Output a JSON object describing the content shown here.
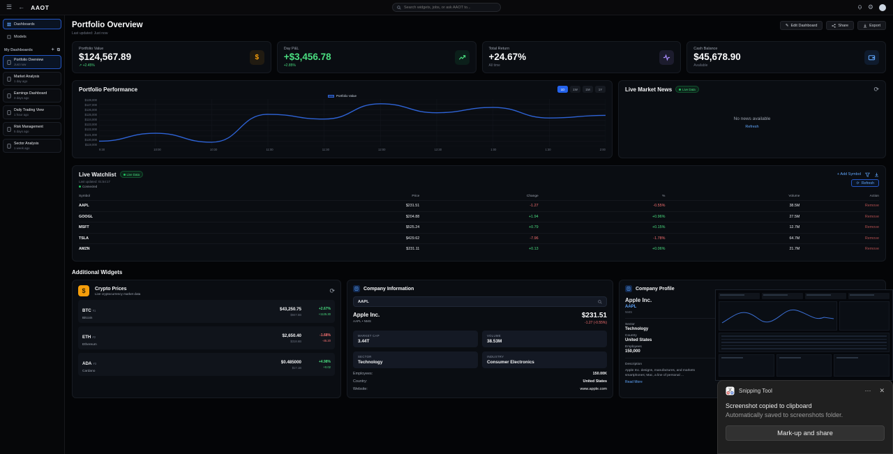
{
  "colors": {
    "accent": "#3b82f6",
    "green": "#4ade80",
    "red": "#f87171",
    "amber": "#f59e0b",
    "purple": "#a78bfa"
  },
  "topbar": {
    "logo": "AAOT",
    "search_placeholder": "Search widgets, jobs, or ask AAOT to..."
  },
  "sidebar": {
    "nav": [
      {
        "label": "Dashboards"
      },
      {
        "label": "Models"
      }
    ],
    "section_title": "My Dashboards",
    "dashboards": [
      {
        "label": "Portfolio Overview",
        "time": "Just now"
      },
      {
        "label": "Market Analysis",
        "time": "1 day ago"
      },
      {
        "label": "Earnings Dashboard",
        "time": "3 days ago"
      },
      {
        "label": "Daily Trading View",
        "time": "1 hour ago"
      },
      {
        "label": "Risk Management",
        "time": "5 days ago"
      },
      {
        "label": "Sector Analysis",
        "time": "1 week ago"
      }
    ]
  },
  "header": {
    "title": "Portfolio Overview",
    "subtitle": "Last updated: Just now",
    "edit": "Edit Dashboard",
    "share": "Share",
    "export": "Export"
  },
  "stats": [
    {
      "label": "Portfolio Value",
      "value": "$124,567.89",
      "sub": "↗ +2.45%"
    },
    {
      "label": "Day P&L",
      "value": "+$3,456.78",
      "sub": "+2.85%"
    },
    {
      "label": "Total Return",
      "value": "+24.67%",
      "sub": "All time"
    },
    {
      "label": "Cash Balance",
      "value": "$45,678.90",
      "sub": "Available"
    }
  ],
  "performance": {
    "title": "Portfolio Performance",
    "ranges": [
      "1D",
      "1W",
      "1M",
      "1Y"
    ],
    "active_range": "1D"
  },
  "chart_data": {
    "type": "line",
    "title": "Portfolio Performance",
    "legend": "Portfolio Value",
    "x": [
      "9:30",
      "10:00",
      "10:30",
      "11:00",
      "11:30",
      "12:00",
      "12:30",
      "1:00",
      "1:30",
      "2:00"
    ],
    "values": [
      120000,
      121500,
      119800,
      125100,
      124200,
      127100,
      125400,
      126400,
      124400,
      124900
    ],
    "ylim": [
      119000,
      128000
    ],
    "yticks": [
      "$128,000",
      "$127,000",
      "$126,000",
      "$125,000",
      "$124,000",
      "$123,000",
      "$122,000",
      "$121,000",
      "$120,000",
      "$119,000"
    ],
    "xlabel": "",
    "ylabel": "",
    "grid": true,
    "legend_position": "top-center"
  },
  "news": {
    "title": "Live Market News",
    "badge": "Live Data",
    "empty": "No news available",
    "refresh": "Refresh"
  },
  "watchlist": {
    "title": "Live Watchlist",
    "badge": "Live Data",
    "last_updated": "Last updated: 01:54:17",
    "connection": "Connected",
    "add_symbol": "+ Add Symbol",
    "refresh": "Refresh",
    "columns": [
      "Symbol",
      "Price",
      "Change",
      "%",
      "Volume",
      "Action"
    ],
    "rows": [
      {
        "symbol": "AAPL",
        "price": "$231.51",
        "change": "-1.27",
        "pct": "-0.55%",
        "volume": "38.5M",
        "action": "Remove",
        "dir": "down"
      },
      {
        "symbol": "GOOGL",
        "price": "$204.88",
        "change": "+1.94",
        "pct": "+0.96%",
        "volume": "27.5M",
        "action": "Remove",
        "dir": "up"
      },
      {
        "symbol": "MSFT",
        "price": "$525.24",
        "change": "+0.79",
        "pct": "+0.15%",
        "volume": "12.7M",
        "action": "Remove",
        "dir": "up"
      },
      {
        "symbol": "TSLA",
        "price": "$429.62",
        "change": "-7.96",
        "pct": "-1.78%",
        "volume": "64.7M",
        "action": "Remove",
        "dir": "down"
      },
      {
        "symbol": "AMZN",
        "price": "$231.11",
        "change": "+0.13",
        "pct": "+0.06%",
        "volume": "21.7M",
        "action": "Remove",
        "dir": "up"
      }
    ]
  },
  "additional_title": "Additional Widgets",
  "crypto": {
    "title": "Crypto Prices",
    "subtitle": "Live cryptocurrency market data",
    "rows": [
      {
        "symbol": "BTC",
        "rank": "#1",
        "name": "Bitcoin",
        "price": "$43,250.75",
        "mcap": "$847.5B",
        "pct": "+2.67%",
        "change": "+1125.30",
        "dir": "up"
      },
      {
        "symbol": "ETH",
        "rank": "#2",
        "name": "Ethereum",
        "price": "$2,650.40",
        "mcap": "$318.6B",
        "pct": "-1.68%",
        "change": "-45.20",
        "dir": "down"
      },
      {
        "symbol": "ADA",
        "rank": "#3",
        "name": "Cardano",
        "price": "$0.485000",
        "mcap": "$17.1B",
        "pct": "+4.98%",
        "change": "+0.02",
        "dir": "up"
      }
    ]
  },
  "company_info": {
    "title": "Company Information",
    "search_value": "AAPL",
    "name": "Apple Inc.",
    "ticker_line": "AAPL • NMS",
    "price": "$231.51",
    "change": "-1.27 (-0.55%)",
    "dir": "down",
    "stats": [
      {
        "label": "MARKET CAP",
        "value": "3.44T"
      },
      {
        "label": "VOLUME",
        "value": "38.53M"
      },
      {
        "label": "SECTOR",
        "value": "Technology"
      },
      {
        "label": "INDUSTRY",
        "value": "Consumer Electronics"
      }
    ],
    "details": [
      {
        "label": "Employees:",
        "value": "150.00K"
      },
      {
        "label": "Country:",
        "value": "United States"
      },
      {
        "label": "Website:",
        "value": "www.apple.com"
      }
    ]
  },
  "company_profile": {
    "title": "Company Profile",
    "name": "Apple Inc.",
    "ticker": "AAPL",
    "exchange": "NMS",
    "fields": [
      {
        "label": "Sector",
        "value": "Technology"
      },
      {
        "label": "Country",
        "value": "United States"
      },
      {
        "label": "Employees",
        "value": "150,000"
      }
    ],
    "description_label": "Description",
    "description": "Apple Inc. designs, manufactures, and markets smartphones; Mac, a line of personal ...",
    "read_more": "Read More"
  },
  "notification": {
    "app": "Snipping Tool",
    "line1": "Screenshot copied to clipboard",
    "line2": "Automatically saved to screenshots folder.",
    "button": "Mark-up and share"
  }
}
